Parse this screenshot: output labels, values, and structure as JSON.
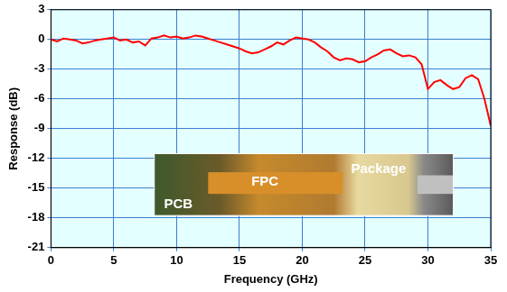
{
  "chart_data": {
    "type": "line",
    "x_label": "Frequency (GHz)",
    "y_label": "Response (dB)",
    "x": [
      0,
      0.5,
      1,
      1.5,
      2,
      2.5,
      3,
      3.5,
      4,
      4.5,
      5,
      5.5,
      6,
      6.5,
      7,
      7.5,
      8,
      8.5,
      9,
      9.5,
      10,
      10.5,
      11,
      11.5,
      12,
      12.5,
      13,
      13.5,
      14,
      14.5,
      15,
      15.5,
      16,
      16.5,
      17,
      17.5,
      18,
      18.5,
      19,
      19.5,
      20,
      20.5,
      21,
      21.5,
      22,
      22.5,
      23,
      23.5,
      24,
      24.5,
      25,
      25.5,
      26,
      26.5,
      27,
      27.5,
      28,
      28.5,
      29,
      29.5,
      30,
      30.5,
      31,
      31.5,
      32,
      32.5,
      33,
      33.5,
      34,
      34.5,
      35
    ],
    "values": [
      0,
      -0.2,
      0.1,
      0,
      -0.1,
      -0.4,
      -0.3,
      -0.1,
      0,
      0.1,
      0.2,
      -0.1,
      0,
      -0.3,
      -0.2,
      -0.6,
      0.1,
      0.2,
      0.4,
      0.2,
      0.3,
      0.1,
      0.2,
      0.4,
      0.3,
      0.1,
      -0.1,
      -0.3,
      -0.5,
      -0.7,
      -0.9,
      -1.2,
      -1.4,
      -1.3,
      -1.0,
      -0.7,
      -0.3,
      -0.5,
      -0.1,
      0.2,
      0.1,
      0,
      -0.3,
      -0.8,
      -1.2,
      -1.8,
      -2.1,
      -1.9,
      -2.0,
      -2.3,
      -2.2,
      -1.8,
      -1.5,
      -1.1,
      -1.0,
      -1.4,
      -1.7,
      -1.6,
      -1.8,
      -2.5,
      -5.0,
      -4.3,
      -4.1,
      -4.6,
      -5.0,
      -4.8,
      -3.9,
      -3.6,
      -4.0,
      -6.0,
      -8.7
    ],
    "color": "#ff0000",
    "xlim": [
      0,
      35
    ],
    "xticks": [
      0,
      5,
      10,
      15,
      20,
      25,
      30,
      35
    ],
    "ylim": [
      -21,
      3
    ],
    "yticks": [
      -21,
      -18,
      -15,
      -12,
      -9,
      -6,
      -3,
      0,
      3
    ],
    "grid": true,
    "marker": "none",
    "line_style": "solid",
    "annotations": [
      "PCB",
      "FPC",
      "Package"
    ]
  }
}
